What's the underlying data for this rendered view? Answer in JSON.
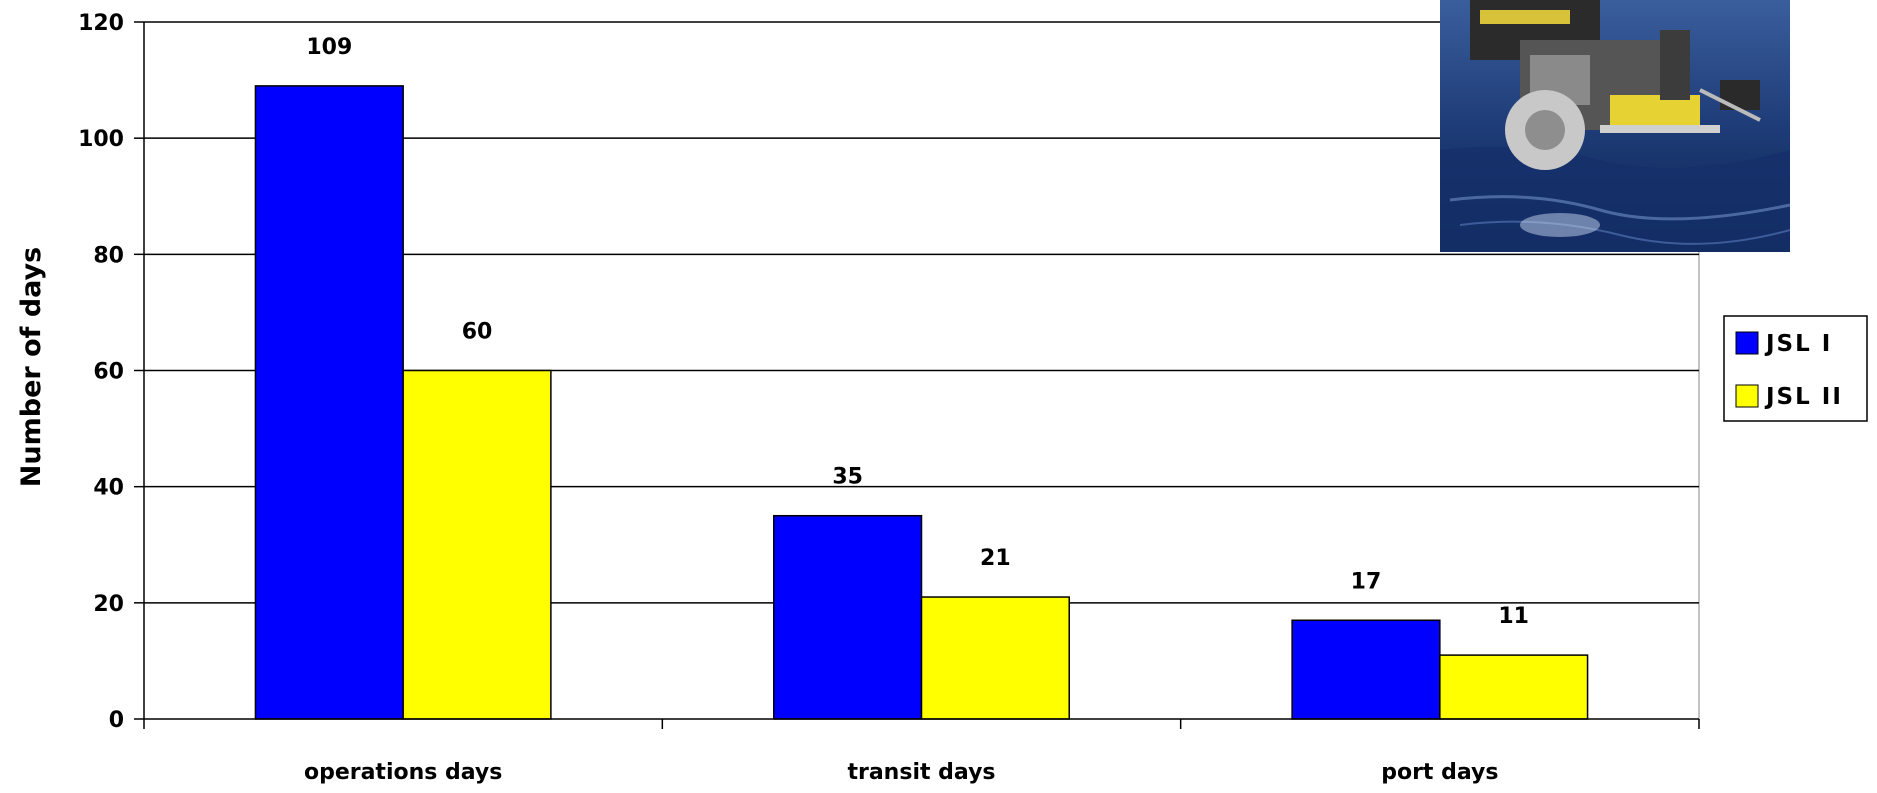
{
  "chart_data": {
    "type": "bar",
    "title": "",
    "xlabel": "",
    "ylabel": "Number of days",
    "categories": [
      "operations days",
      "transit days",
      "port days"
    ],
    "series": [
      {
        "name": "JSL I",
        "values": [
          109,
          35,
          17
        ],
        "color": "#0000ff"
      },
      {
        "name": "JSL II",
        "values": [
          60,
          21,
          11
        ],
        "color": "#ffff00"
      }
    ],
    "ylim": [
      0,
      120
    ],
    "yticks": [
      0,
      20,
      40,
      60,
      80,
      100,
      120
    ],
    "grid": true,
    "legend_position": "right",
    "data_labels": true,
    "inset_image": "submersible-vehicle-over-ocean-photo"
  }
}
